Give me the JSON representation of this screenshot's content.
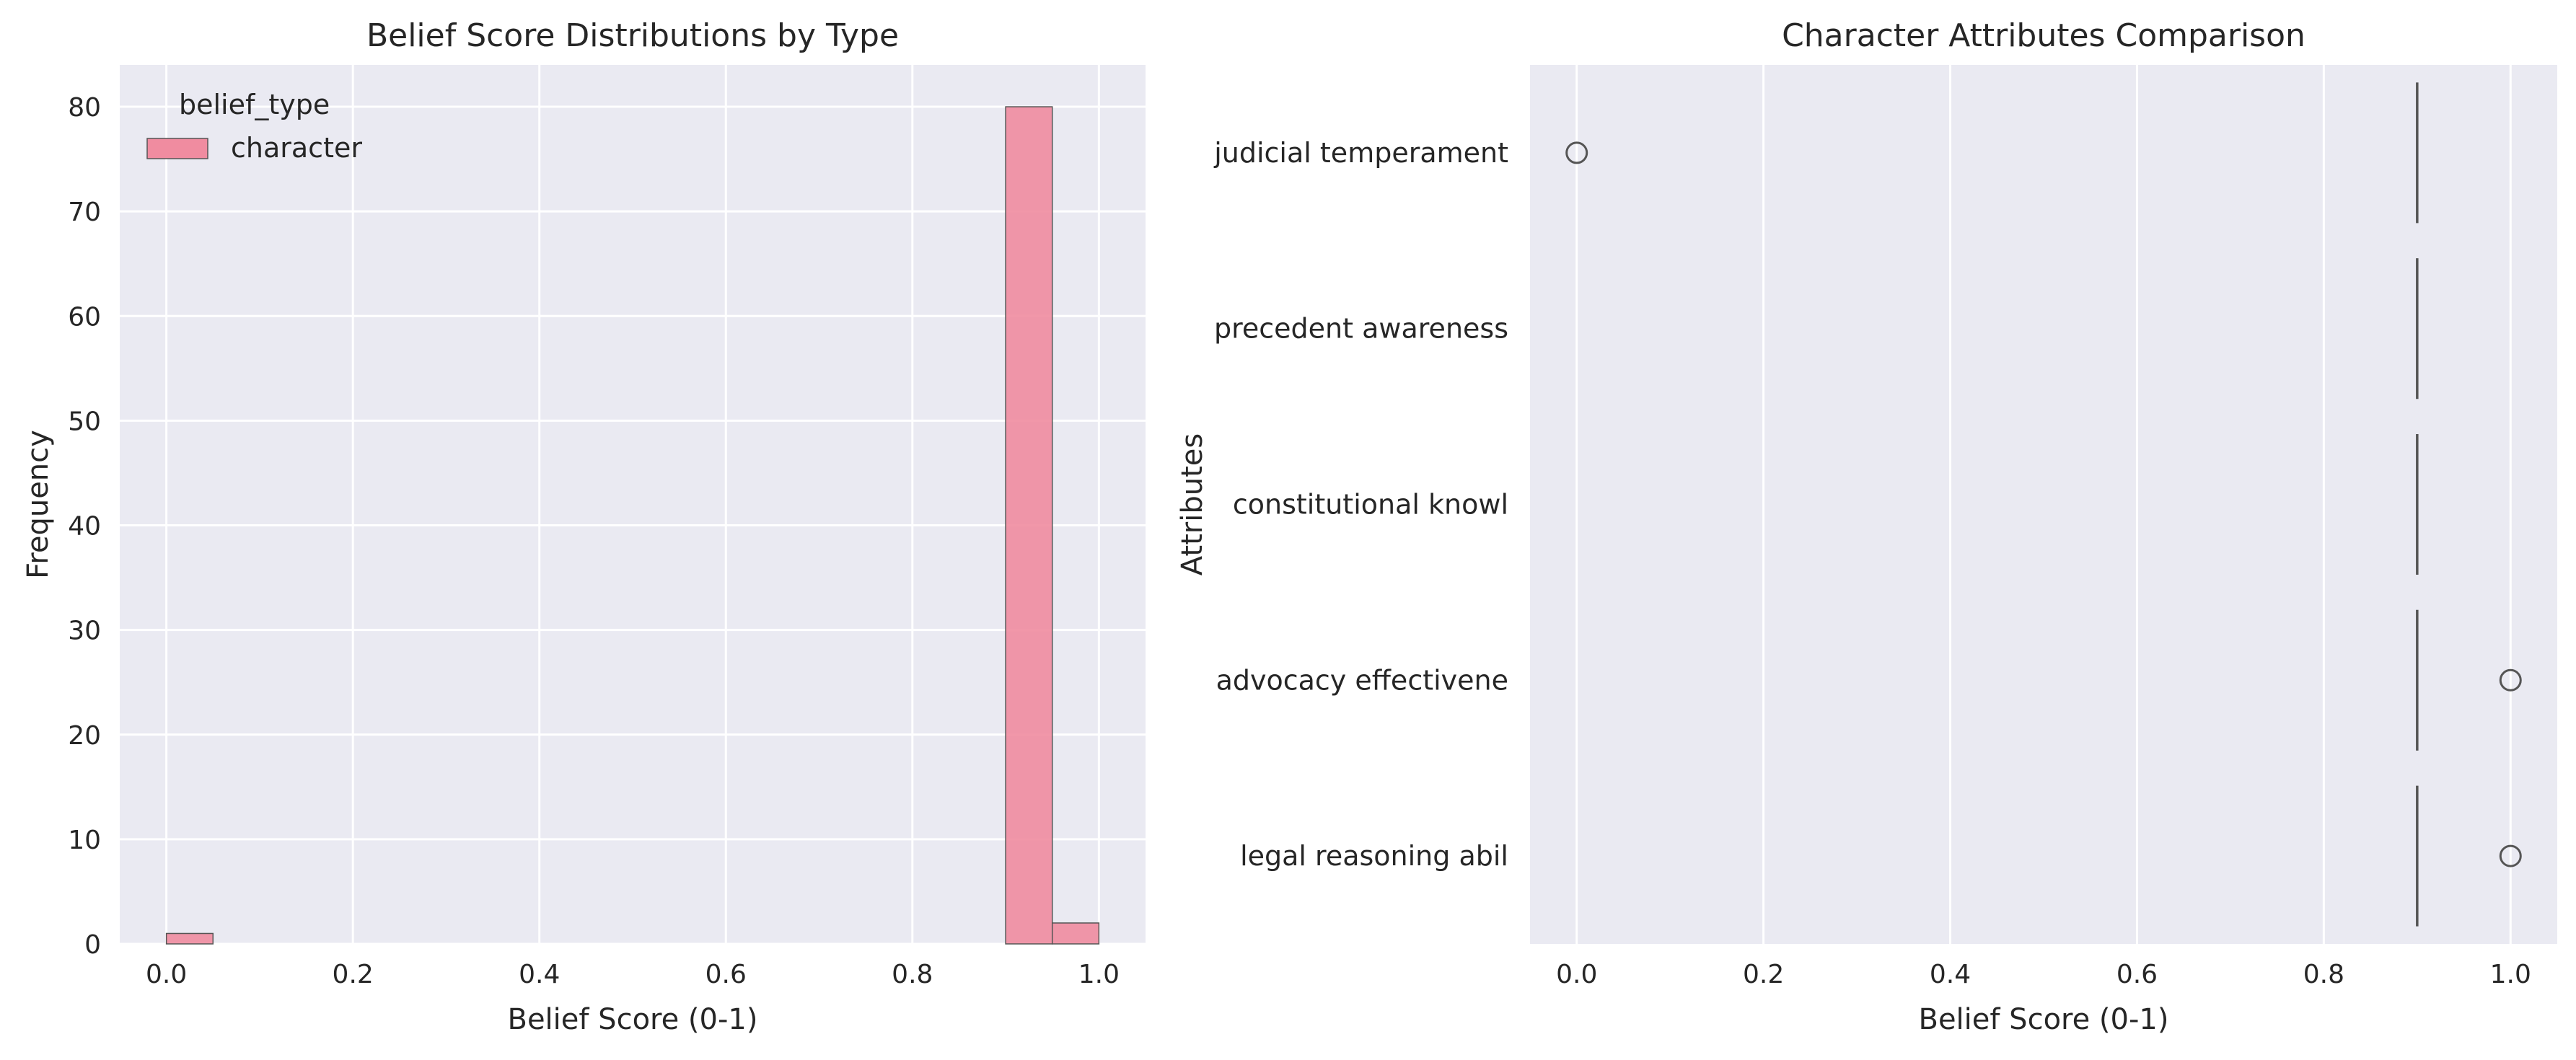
{
  "theme": {
    "panel_background": "#eaeaf2",
    "grid_color": "#ffffff",
    "bar_color": "#f08ca0",
    "bar_edge": "#555555",
    "box_line": "#555555",
    "outlier_edge": "#555555"
  },
  "chart_data": [
    {
      "type": "bar",
      "subtype": "histogram",
      "title": "Belief Score Distributions by Type",
      "xlabel": "Belief Score (0-1)",
      "ylabel": "Frequency",
      "xlim": [
        -0.05,
        1.05
      ],
      "ylim": [
        0,
        84
      ],
      "xticks": [
        0.0,
        0.2,
        0.4,
        0.6,
        0.8,
        1.0
      ],
      "xtick_labels": [
        "0.0",
        "0.2",
        "0.4",
        "0.6",
        "0.8",
        "1.0"
      ],
      "yticks": [
        0,
        10,
        20,
        30,
        40,
        50,
        60,
        70,
        80
      ],
      "ytick_labels": [
        "0",
        "10",
        "20",
        "30",
        "40",
        "50",
        "60",
        "70",
        "80"
      ],
      "grid": true,
      "legend": {
        "title": "belief_type",
        "placement": "upper-left",
        "entries": [
          "character"
        ]
      },
      "series": [
        {
          "name": "character",
          "bins": [
            {
              "x0": 0.0,
              "x1": 0.05,
              "count": 1
            },
            {
              "x0": 0.9,
              "x1": 0.95,
              "count": 80
            },
            {
              "x0": 0.95,
              "x1": 1.0,
              "count": 2
            }
          ]
        }
      ]
    },
    {
      "type": "box",
      "orientation": "horizontal",
      "title": "Character Attributes Comparison",
      "xlabel": "Belief Score (0-1)",
      "ylabel": "Attributes",
      "xlim": [
        -0.05,
        1.05
      ],
      "xticks": [
        0.0,
        0.2,
        0.4,
        0.6,
        0.8,
        1.0
      ],
      "xtick_labels": [
        "0.0",
        "0.2",
        "0.4",
        "0.6",
        "0.8",
        "1.0"
      ],
      "grid": true,
      "categories": [
        "judicial temperament",
        "precedent awareness",
        "constitutional knowl",
        "advocacy effectivene",
        "legal reasoning abil"
      ],
      "boxes": [
        {
          "category": "judicial temperament",
          "median": 0.9,
          "outliers": [
            0.0
          ]
        },
        {
          "category": "precedent awareness",
          "median": 0.9,
          "outliers": []
        },
        {
          "category": "constitutional knowl",
          "median": 0.9,
          "outliers": []
        },
        {
          "category": "advocacy effectivene",
          "median": 0.9,
          "outliers": [
            1.0
          ]
        },
        {
          "category": "legal reasoning abil",
          "median": 0.9,
          "outliers": [
            1.0
          ]
        }
      ]
    }
  ]
}
